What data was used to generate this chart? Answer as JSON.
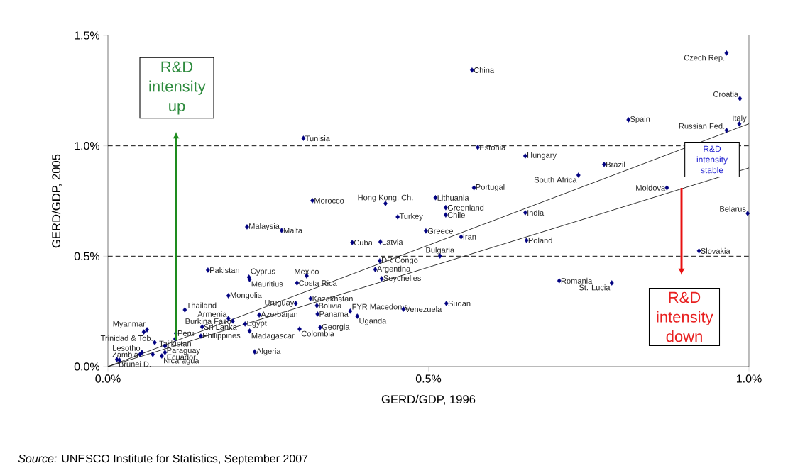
{
  "chart_data": {
    "type": "scatter",
    "xlabel": "GERD/GDP, 1996",
    "ylabel": "GERD/GDP, 2005",
    "marker": "diamond",
    "xlim": [
      0,
      1.0
    ],
    "ylim": [
      0,
      1.5
    ],
    "xticks": [
      {
        "value": 0,
        "label": "0.0%"
      },
      {
        "value": 0.5,
        "label": "0.5%"
      },
      {
        "value": 1.0,
        "label": "1.0%"
      }
    ],
    "yticks": [
      {
        "value": 0,
        "label": "0.0%"
      },
      {
        "value": 0.5,
        "label": "0.5%"
      },
      {
        "value": 1.0,
        "label": "1.0%"
      },
      {
        "value": 1.5,
        "label": "1.5%"
      }
    ],
    "series": [
      {
        "color": "#000080",
        "x": [
          0.568,
          0.965,
          0.986,
          0.985,
          0.965,
          0.812,
          0.305,
          0.577,
          0.651,
          0.774,
          0.734,
          0.872,
          0.998,
          0.571,
          0.511,
          0.527,
          0.527,
          0.651,
          0.433,
          0.319,
          0.452,
          0.496,
          0.551,
          0.653,
          0.922,
          0.217,
          0.271,
          0.381,
          0.425,
          0.518,
          0.424,
          0.417,
          0.427,
          0.156,
          0.22,
          0.221,
          0.31,
          0.295,
          0.188,
          0.12,
          0.316,
          0.293,
          0.326,
          0.327,
          0.236,
          0.188,
          0.195,
          0.147,
          0.214,
          0.106,
          0.145,
          0.221,
          0.299,
          0.331,
          0.378,
          0.389,
          0.461,
          0.528,
          0.229,
          0.704,
          0.786,
          0.061,
          0.073,
          0.105,
          0.089,
          0.089,
          0.084,
          0.014,
          0.053,
          0.05,
          0.056,
          0.07,
          0.018
        ],
        "values": [
          1.343,
          1.42,
          1.214,
          1.099,
          1.07,
          1.118,
          1.034,
          0.993,
          0.954,
          0.916,
          0.867,
          0.81,
          0.694,
          0.81,
          0.765,
          0.72,
          0.687,
          0.697,
          0.739,
          0.752,
          0.678,
          0.614,
          0.588,
          0.572,
          0.524,
          0.633,
          0.617,
          0.562,
          0.565,
          0.501,
          0.479,
          0.44,
          0.398,
          0.437,
          0.405,
          0.395,
          0.411,
          0.379,
          0.321,
          0.257,
          0.308,
          0.286,
          0.276,
          0.238,
          0.234,
          0.218,
          0.206,
          0.18,
          0.193,
          0.151,
          0.138,
          0.161,
          0.17,
          0.177,
          0.251,
          0.228,
          0.26,
          0.286,
          0.067,
          0.389,
          0.379,
          0.167,
          0.109,
          0.125,
          0.093,
          0.064,
          0.048,
          0.032,
          0.064,
          0.055,
          0.157,
          0.055,
          0.029
        ]
      },
      {
        "type": "line",
        "marker": "none",
        "color": "#000000",
        "x": [
          0,
          1.0
        ],
        "values": [
          0,
          1.1
        ]
      },
      {
        "type": "line",
        "marker": "none",
        "color": "#000000",
        "x": [
          0,
          1.0
        ],
        "values": [
          0,
          0.9
        ]
      }
    ],
    "ref_lines": [
      {
        "axis": "y",
        "value": 0.5,
        "color": "#000000",
        "line_style": "dashed"
      },
      {
        "axis": "y",
        "value": 1.0,
        "color": "#000000",
        "line_style": "dashed"
      }
    ],
    "annotations": [
      "R&D intensity up",
      "R&D intensity stable",
      "R&D intensity down",
      "*Source:*   UNESCO Institute for Statistics, September 2007",
      {
        "text": "China",
        "x": 0.568,
        "y": 1.343
      },
      {
        "text": "Czech Rep.",
        "x": 0.965,
        "y": 1.42
      },
      {
        "text": "Croatia",
        "x": 0.986,
        "y": 1.214
      },
      {
        "text": "Italy",
        "x": 0.985,
        "y": 1.099
      },
      {
        "text": "Russian Fed.",
        "x": 0.965,
        "y": 1.07
      },
      {
        "text": "Spain",
        "x": 0.812,
        "y": 1.118
      },
      {
        "text": "Tunisia",
        "x": 0.305,
        "y": 1.034
      },
      {
        "text": "Estonia",
        "x": 0.577,
        "y": 0.993
      },
      {
        "text": "Hungary",
        "x": 0.651,
        "y": 0.954
      },
      {
        "text": "Brazil",
        "x": 0.774,
        "y": 0.916
      },
      {
        "text": "South Africa",
        "x": 0.734,
        "y": 0.867
      },
      {
        "text": "Moldova",
        "x": 0.872,
        "y": 0.81
      },
      {
        "text": "Belarus",
        "x": 0.998,
        "y": 0.694
      },
      {
        "text": "Portugal",
        "x": 0.571,
        "y": 0.81
      },
      {
        "text": "Lithuania",
        "x": 0.511,
        "y": 0.765
      },
      {
        "text": "Greenland",
        "x": 0.527,
        "y": 0.72
      },
      {
        "text": "Chile",
        "x": 0.527,
        "y": 0.687
      },
      {
        "text": "India",
        "x": 0.651,
        "y": 0.697
      },
      {
        "text": "Hong Kong, Ch.",
        "x": 0.433,
        "y": 0.739
      },
      {
        "text": "Morocco",
        "x": 0.319,
        "y": 0.752
      },
      {
        "text": "Turkey",
        "x": 0.452,
        "y": 0.678
      },
      {
        "text": "Greece",
        "x": 0.496,
        "y": 0.614
      },
      {
        "text": "Iran",
        "x": 0.551,
        "y": 0.588
      },
      {
        "text": "Poland",
        "x": 0.653,
        "y": 0.572
      },
      {
        "text": "Slovakia",
        "x": 0.922,
        "y": 0.524
      },
      {
        "text": "Malaysia",
        "x": 0.217,
        "y": 0.633
      },
      {
        "text": "Malta",
        "x": 0.271,
        "y": 0.617
      },
      {
        "text": "Cuba",
        "x": 0.381,
        "y": 0.562
      },
      {
        "text": "Latvia",
        "x": 0.425,
        "y": 0.565
      },
      {
        "text": "Bulgaria",
        "x": 0.518,
        "y": 0.501
      },
      {
        "text": "DR Congo",
        "x": 0.424,
        "y": 0.479
      },
      {
        "text": "Argentina",
        "x": 0.417,
        "y": 0.44
      },
      {
        "text": "Seychelles",
        "x": 0.427,
        "y": 0.398
      },
      {
        "text": "Pakistan",
        "x": 0.156,
        "y": 0.437
      },
      {
        "text": "Cyprus",
        "x": 0.22,
        "y": 0.405
      },
      {
        "text": "Mauritius",
        "x": 0.221,
        "y": 0.395
      },
      {
        "text": "Mexico",
        "x": 0.31,
        "y": 0.411
      },
      {
        "text": "Costa Rica",
        "x": 0.295,
        "y": 0.379
      },
      {
        "text": "Mongolia",
        "x": 0.188,
        "y": 0.321
      },
      {
        "text": "Thailand",
        "x": 0.12,
        "y": 0.257
      },
      {
        "text": "Kazakhstan",
        "x": 0.316,
        "y": 0.308
      },
      {
        "text": "Uruguay",
        "x": 0.293,
        "y": 0.286
      },
      {
        "text": "Bolivia",
        "x": 0.326,
        "y": 0.276
      },
      {
        "text": "Panama",
        "x": 0.327,
        "y": 0.238
      },
      {
        "text": "Azerbaijan",
        "x": 0.236,
        "y": 0.234
      },
      {
        "text": "Armenia",
        "x": 0.188,
        "y": 0.218
      },
      {
        "text": "Burkina Faso",
        "x": 0.195,
        "y": 0.206
      },
      {
        "text": "Sri Lanka",
        "x": 0.147,
        "y": 0.18
      },
      {
        "text": "Egypt",
        "x": 0.214,
        "y": 0.193
      },
      {
        "text": "Peru",
        "x": 0.106,
        "y": 0.151
      },
      {
        "text": "Philippines",
        "x": 0.145,
        "y": 0.138
      },
      {
        "text": "Madagascar",
        "x": 0.221,
        "y": 0.161
      },
      {
        "text": "Colombia",
        "x": 0.299,
        "y": 0.17
      },
      {
        "text": "Georgia",
        "x": 0.331,
        "y": 0.177
      },
      {
        "text": "FYR Macedonia",
        "x": 0.378,
        "y": 0.251
      },
      {
        "text": "Uganda",
        "x": 0.389,
        "y": 0.228
      },
      {
        "text": "Venezuela",
        "x": 0.461,
        "y": 0.26
      },
      {
        "text": "Sudan",
        "x": 0.528,
        "y": 0.286
      },
      {
        "text": "Algeria",
        "x": 0.229,
        "y": 0.067
      },
      {
        "text": "Romania",
        "x": 0.704,
        "y": 0.389
      },
      {
        "text": "St. Lucia",
        "x": 0.786,
        "y": 0.379
      },
      {
        "text": "Myanmar",
        "x": 0.061,
        "y": 0.167
      },
      {
        "text": "Trinidad & Tob.",
        "x": 0.073,
        "y": 0.109
      },
      {
        "text": "Tajikistan",
        "x": 0.105,
        "y": 0.125
      },
      {
        "text": "Paraguay",
        "x": 0.089,
        "y": 0.093
      },
      {
        "text": "Ecuador",
        "x": 0.089,
        "y": 0.064
      },
      {
        "text": "Nicaragua",
        "x": 0.084,
        "y": 0.048
      },
      {
        "text": "Brunei D.",
        "x": 0.014,
        "y": 0.032
      },
      {
        "text": "Lesotho",
        "x": 0.053,
        "y": 0.064
      },
      {
        "text": "Zambia",
        "x": 0.05,
        "y": 0.055
      }
    ]
  }
}
